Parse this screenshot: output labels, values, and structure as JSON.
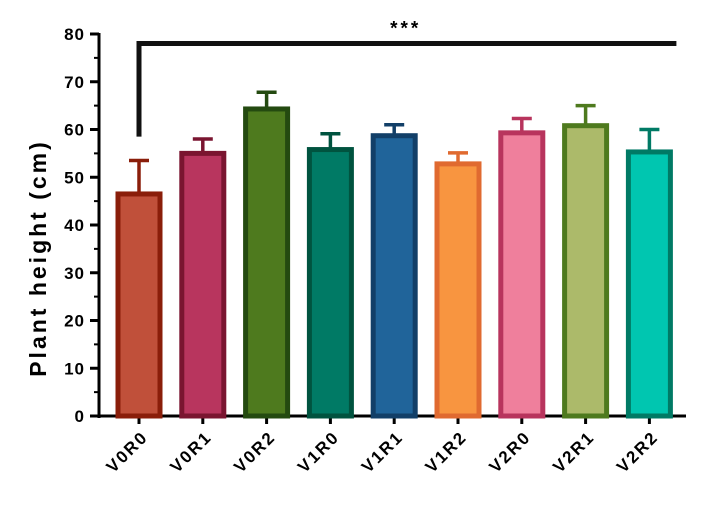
{
  "chart_data": {
    "type": "bar",
    "title": "",
    "xlabel": "",
    "ylabel": "Plant height (cm)",
    "ylim": [
      0,
      80
    ],
    "yticks": [
      0,
      10,
      20,
      30,
      40,
      50,
      60,
      70,
      80
    ],
    "grid": false,
    "legend": "none",
    "categories": [
      "V0R0",
      "V0R1",
      "V0R2",
      "V1R0",
      "V1R1",
      "V1R2",
      "V2R0",
      "V2R1",
      "V2R2"
    ],
    "values": [
      46.5,
      55.0,
      64.3,
      55.8,
      58.7,
      52.8,
      59.3,
      60.8,
      55.3
    ],
    "error_upper": [
      7.0,
      3.0,
      3.5,
      3.3,
      2.3,
      2.3,
      3.0,
      4.2,
      4.7
    ],
    "fill_colors": [
      "#c0503a",
      "#b8355e",
      "#4e7a1e",
      "#007a65",
      "#20649a",
      "#f89540",
      "#ef7f9c",
      "#acba6a",
      "#00c6b0"
    ],
    "edge_colors": [
      "#8a1e0a",
      "#7a1530",
      "#244a10",
      "#00533f",
      "#123f68",
      "#e06a30",
      "#b8345d",
      "#4e7a1e",
      "#007a65"
    ],
    "significance": {
      "label": "***",
      "from_category": "V0R0",
      "to_category": "V2R2",
      "y": 78,
      "stem_to": 58.5
    }
  }
}
